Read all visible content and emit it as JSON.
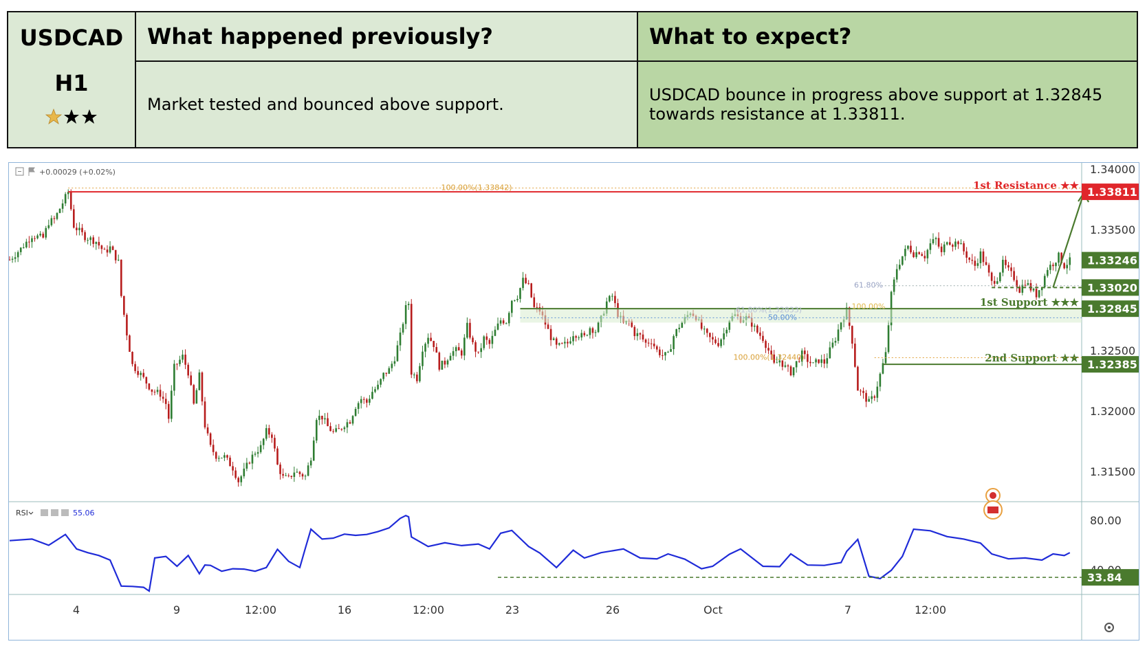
{
  "header": {
    "symbol": "USDCAD",
    "timeframe": "H1",
    "rating_stars": 3,
    "prev_title": "What happened previously?",
    "prev_text": "Market tested and bounced above support.",
    "expect_title": "What to expect?",
    "expect_text": "USDCAD bounce in progress above support at 1.32845 towards resistance at 1.33811."
  },
  "colors": {
    "header_left": "#dce9d5",
    "header_right": "#b9d6a4",
    "resistance": "#e0262b",
    "support": "#4a7a2e",
    "rsi_line": "#1f2bd8",
    "candle_up": "#2e7d32",
    "candle_down": "#b71c1c",
    "star_gold": "#e8b84a"
  },
  "chart_data": [
    {
      "type": "candlestick",
      "price_change_label": "+0.00029 (+0.02%)",
      "ylim": [
        1.3125,
        1.3405
      ],
      "y_ticks": [
        "1.34000",
        "1.33500",
        "1.32500",
        "1.32000",
        "1.31500"
      ],
      "x_ticks": [
        "4",
        "9",
        "12:00",
        "16",
        "12:00",
        "23",
        "26",
        "Oct",
        "7",
        "12:00"
      ],
      "close_path": [
        [
          0,
          1.3325
        ],
        [
          4,
          1.3334
        ],
        [
          8,
          1.3345
        ],
        [
          12,
          1.3343
        ],
        [
          14,
          1.3356
        ],
        [
          16,
          1.3358
        ],
        [
          19,
          1.3372
        ],
        [
          21,
          1.3381
        ],
        [
          23,
          1.3353
        ],
        [
          27,
          1.3344
        ],
        [
          31,
          1.334
        ],
        [
          34,
          1.3331
        ],
        [
          36,
          1.3335
        ],
        [
          39,
          1.3323
        ],
        [
          40,
          1.3295
        ],
        [
          42,
          1.3264
        ],
        [
          44,
          1.3238
        ],
        [
          47,
          1.323
        ],
        [
          51,
          1.3217
        ],
        [
          54,
          1.3214
        ],
        [
          56,
          1.3206
        ],
        [
          57,
          1.3194
        ],
        [
          59,
          1.3236
        ],
        [
          62,
          1.3245
        ],
        [
          64,
          1.3232
        ],
        [
          66,
          1.3205
        ],
        [
          68,
          1.3229
        ],
        [
          70,
          1.3188
        ],
        [
          72,
          1.317
        ],
        [
          74,
          1.3163
        ],
        [
          77,
          1.3162
        ],
        [
          80,
          1.3153
        ],
        [
          82,
          1.3142
        ],
        [
          84,
          1.315
        ],
        [
          86,
          1.3159
        ],
        [
          88,
          1.3166
        ],
        [
          90,
          1.317
        ],
        [
          92,
          1.3183
        ],
        [
          94,
          1.318
        ],
        [
          96,
          1.3155
        ],
        [
          98,
          1.3145
        ],
        [
          100,
          1.3144
        ],
        [
          102,
          1.315
        ],
        [
          104,
          1.3148
        ],
        [
          106,
          1.3146
        ],
        [
          108,
          1.3162
        ],
        [
          110,
          1.3195
        ],
        [
          112,
          1.3195
        ],
        [
          114,
          1.3187
        ],
        [
          116,
          1.3182
        ],
        [
          118,
          1.3184
        ],
        [
          120,
          1.3189
        ],
        [
          122,
          1.3192
        ],
        [
          124,
          1.3204
        ],
        [
          126,
          1.321
        ],
        [
          128,
          1.3207
        ],
        [
          130,
          1.3216
        ],
        [
          132,
          1.322
        ],
        [
          134,
          1.323
        ],
        [
          136,
          1.3234
        ],
        [
          138,
          1.3244
        ],
        [
          140,
          1.3262
        ],
        [
          142,
          1.3285
        ],
        [
          143,
          1.3289
        ],
        [
          144,
          1.3232
        ],
        [
          146,
          1.3227
        ],
        [
          148,
          1.3252
        ],
        [
          150,
          1.3262
        ],
        [
          152,
          1.3255
        ],
        [
          154,
          1.3237
        ],
        [
          156,
          1.324
        ],
        [
          158,
          1.3248
        ],
        [
          160,
          1.325
        ],
        [
          162,
          1.3248
        ],
        [
          164,
          1.327
        ],
        [
          166,
          1.3255
        ],
        [
          168,
          1.3246
        ],
        [
          170,
          1.326
        ],
        [
          172,
          1.3255
        ],
        [
          174,
          1.3266
        ],
        [
          176,
          1.3275
        ],
        [
          178,
          1.3274
        ],
        [
          180,
          1.3292
        ],
        [
          182,
          1.3295
        ],
        [
          184,
          1.3308
        ],
        [
          186,
          1.3303
        ],
        [
          188,
          1.3285
        ],
        [
          190,
          1.3283
        ],
        [
          192,
          1.3272
        ],
        [
          194,
          1.3261
        ],
        [
          196,
          1.3253
        ],
        [
          198,
          1.3254
        ],
        [
          200,
          1.3256
        ],
        [
          202,
          1.3264
        ],
        [
          204,
          1.3263
        ],
        [
          206,
          1.3261
        ],
        [
          208,
          1.3269
        ],
        [
          210,
          1.3266
        ],
        [
          212,
          1.3276
        ],
        [
          214,
          1.329
        ],
        [
          216,
          1.3295
        ],
        [
          218,
          1.328
        ],
        [
          220,
          1.3272
        ],
        [
          222,
          1.3274
        ],
        [
          224,
          1.3264
        ],
        [
          226,
          1.3262
        ],
        [
          228,
          1.3256
        ],
        [
          230,
          1.3258
        ],
        [
          232,
          1.325
        ],
        [
          234,
          1.3246
        ],
        [
          236,
          1.3246
        ],
        [
          238,
          1.3262
        ],
        [
          240,
          1.327
        ],
        [
          242,
          1.3276
        ],
        [
          244,
          1.3282
        ],
        [
          246,
          1.3278
        ],
        [
          248,
          1.3268
        ],
        [
          250,
          1.3262
        ],
        [
          252,
          1.3258
        ],
        [
          254,
          1.3256
        ],
        [
          256,
          1.3264
        ],
        [
          258,
          1.3276
        ],
        [
          260,
          1.3279
        ],
        [
          262,
          1.3276
        ],
        [
          264,
          1.3277
        ],
        [
          266,
          1.3272
        ],
        [
          268,
          1.3265
        ],
        [
          270,
          1.326
        ],
        [
          272,
          1.325
        ],
        [
          274,
          1.3238
        ],
        [
          276,
          1.3242
        ],
        [
          278,
          1.3236
        ],
        [
          280,
          1.3232
        ],
        [
          282,
          1.324
        ],
        [
          284,
          1.3247
        ],
        [
          286,
          1.3242
        ],
        [
          288,
          1.3238
        ],
        [
          290,
          1.3242
        ],
        [
          292,
          1.324
        ],
        [
          294,
          1.325
        ],
        [
          296,
          1.326
        ],
        [
          298,
          1.3274
        ],
        [
          300,
          1.3283
        ],
        [
          302,
          1.3258
        ],
        [
          304,
          1.3218
        ],
        [
          306,
          1.3213
        ],
        [
          308,
          1.3207
        ],
        [
          310,
          1.3213
        ],
        [
          312,
          1.323
        ],
        [
          314,
          1.3247
        ],
        [
          316,
          1.3296
        ],
        [
          318,
          1.3318
        ],
        [
          320,
          1.3328
        ],
        [
          322,
          1.3336
        ],
        [
          324,
          1.333
        ],
        [
          326,
          1.3332
        ],
        [
          328,
          1.3328
        ],
        [
          330,
          1.3338
        ],
        [
          332,
          1.3342
        ],
        [
          334,
          1.333
        ],
        [
          336,
          1.3342
        ],
        [
          338,
          1.3338
        ],
        [
          340,
          1.334
        ],
        [
          342,
          1.3332
        ],
        [
          344,
          1.3325
        ],
        [
          346,
          1.332
        ],
        [
          348,
          1.333
        ],
        [
          350,
          1.3319
        ],
        [
          352,
          1.3306
        ],
        [
          354,
          1.331
        ],
        [
          356,
          1.3322
        ],
        [
          358,
          1.3316
        ],
        [
          360,
          1.331
        ],
        [
          362,
          1.33
        ],
        [
          364,
          1.3307
        ],
        [
          366,
          1.3301
        ],
        [
          368,
          1.3296
        ],
        [
          370,
          1.3305
        ],
        [
          372,
          1.3318
        ],
        [
          374,
          1.3322
        ],
        [
          376,
          1.3328
        ],
        [
          378,
          1.332
        ],
        [
          380,
          1.3324
        ]
      ],
      "levels": [
        {
          "label": "1st Resistance ★★",
          "price": 1.33811,
          "tag": "1.33811",
          "role": "resistance",
          "from_x": 21
        },
        {
          "label": "1st Support ★★★",
          "price": 1.32845,
          "tag": "1.32845",
          "role": "support",
          "from_x": 183
        },
        {
          "label": "2nd Support ★★",
          "price": 1.32385,
          "tag": "1.32385",
          "role": "support",
          "from_x": 313
        }
      ],
      "extra_tags": [
        {
          "price": 1.33246,
          "tag": "1.33246"
        },
        {
          "price": 1.3302,
          "tag": "1.33020",
          "dashed_from_x": 352
        }
      ],
      "fib_labels": [
        {
          "text": "100.00%(1.33842)",
          "price": 1.33842
        },
        {
          "text": "61.80%",
          "price": 1.33035
        },
        {
          "text": "61.80%(1.32833)",
          "price": 1.32833
        },
        {
          "text": "100.00%",
          "price": 1.3286
        },
        {
          "text": "50.00%",
          "price": 1.3277
        },
        {
          "text": "100.00%(1.32440)",
          "price": 1.3244
        }
      ],
      "arrow": {
        "from": [
          374,
          1.3302
        ],
        "to": [
          385,
          1.338
        ]
      }
    },
    {
      "type": "line",
      "indicator": "RSI",
      "current_value": "55.06",
      "ylim": [
        20,
        95
      ],
      "y_ticks": [
        "80.00",
        "40.00"
      ],
      "level_tag": "33.84",
      "level": 33.84,
      "level_from_x": 175,
      "x": [
        0,
        8,
        14,
        20,
        24,
        28,
        32,
        36,
        40,
        44,
        48,
        50,
        52,
        56,
        60,
        64,
        68,
        70,
        72,
        76,
        80,
        84,
        88,
        92,
        96,
        100,
        104,
        106,
        108,
        112,
        116,
        120,
        124,
        128,
        132,
        136,
        140,
        142,
        143,
        144,
        150,
        156,
        162,
        168,
        172,
        176,
        180,
        186,
        190,
        196,
        202,
        206,
        212,
        220,
        226,
        232,
        236,
        242,
        248,
        252,
        258,
        262,
        270,
        276,
        280,
        286,
        292,
        298,
        300,
        304,
        308,
        312,
        316,
        320,
        324,
        330,
        336,
        342,
        348,
        352,
        358,
        364,
        370,
        374,
        378,
        380
      ],
      "values": [
        62,
        66,
        61,
        67,
        58,
        55,
        50,
        49,
        28,
        25,
        27,
        24,
        48,
        52,
        44,
        50,
        38,
        45,
        42,
        40,
        42,
        39,
        40,
        43,
        55,
        48,
        43,
        56,
        74,
        66,
        64,
        70,
        69,
        67,
        72,
        75,
        80,
        85,
        84,
        65,
        60,
        63,
        58,
        62,
        58,
        68,
        73,
        60,
        52,
        43,
        57,
        48,
        55,
        58,
        48,
        50,
        54,
        47,
        42,
        44,
        51,
        58,
        44,
        41,
        54,
        45,
        42,
        47,
        56,
        63,
        36,
        34,
        38,
        52,
        74,
        70,
        68,
        66,
        60,
        54,
        50,
        48,
        49,
        54,
        50,
        55
      ]
    }
  ]
}
